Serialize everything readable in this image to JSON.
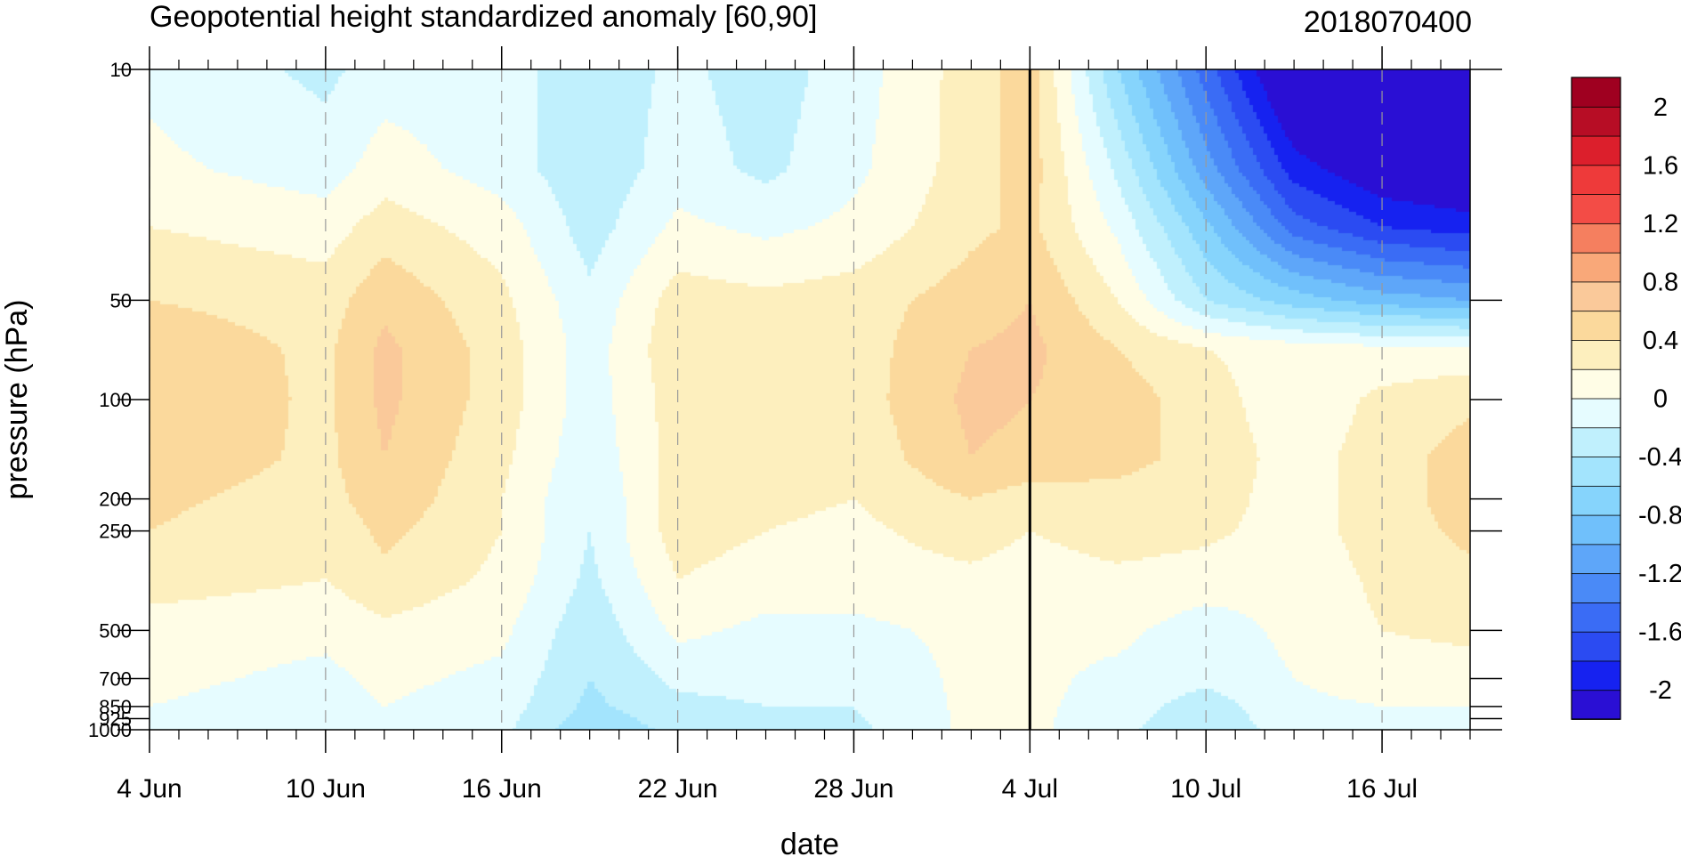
{
  "chart_data": {
    "type": "heatmap",
    "title": "Geopotential height standardized anomaly [60,90]",
    "timestamp": "2018070400",
    "xlabel": "date",
    "ylabel": "pressure (hPa)",
    "y_scale": "log",
    "y_reversed": true,
    "ylim": [
      1000,
      10
    ],
    "xlim": [
      "2018-06-04",
      "2018-07-19"
    ],
    "x_tick_labels": [
      "4 Jun",
      "10 Jun",
      "16 Jun",
      "22 Jun",
      "28 Jun",
      "4 Jul",
      "10 Jul",
      "16 Jul"
    ],
    "x_tick_dates": [
      "2018-06-04",
      "2018-06-10",
      "2018-06-16",
      "2018-06-22",
      "2018-06-28",
      "2018-07-04",
      "2018-07-10",
      "2018-07-16"
    ],
    "current_date_marker": "2018-07-04",
    "y_tick_labels": [
      "10",
      "50",
      "100",
      "200",
      "250",
      "500",
      "700",
      "850",
      "925",
      "1000"
    ],
    "y_tick_values": [
      10,
      50,
      100,
      200,
      250,
      500,
      700,
      850,
      925,
      1000
    ],
    "colorbar": {
      "labels": [
        "2",
        "1.6",
        "1.2",
        "0.8",
        "0.4",
        "0",
        "-0.4",
        "-0.8",
        "-1.2",
        "-1.6",
        "-2"
      ],
      "label_values": [
        2,
        1.6,
        1.2,
        0.8,
        0.4,
        0,
        -0.4,
        -0.8,
        -1.2,
        -1.6,
        -2
      ],
      "levels": [
        -2.2,
        -2.0,
        -1.8,
        -1.6,
        -1.4,
        -1.2,
        -1.0,
        -0.8,
        -0.6,
        -0.4,
        -0.2,
        0,
        0.2,
        0.4,
        0.6,
        0.8,
        1.0,
        1.2,
        1.4,
        1.6,
        1.8,
        2.0,
        2.2
      ],
      "colors": [
        "#2a0fd4",
        "#1622f0",
        "#2b4bf2",
        "#3a6cf5",
        "#4a8af7",
        "#5ea6f9",
        "#70c0fb",
        "#86d4fc",
        "#a3e4fd",
        "#c0f0fd",
        "#e6fcff",
        "#fffde6",
        "#fdefbe",
        "#fbd99c",
        "#fac99a",
        "#f9a879",
        "#f57f5f",
        "#f34c46",
        "#ee3a3a",
        "#dc1f2c",
        "#b70d25",
        "#9f0020"
      ]
    },
    "field": {
      "dates": [
        "2018-06-04",
        "2018-06-10",
        "2018-06-12",
        "2018-06-16",
        "2018-06-19",
        "2018-06-22",
        "2018-06-25",
        "2018-06-28",
        "2018-07-02",
        "2018-07-04",
        "2018-07-07",
        "2018-07-10",
        "2018-07-13",
        "2018-07-16",
        "2018-07-19"
      ],
      "pressure_levels": [
        10,
        20,
        30,
        50,
        70,
        100,
        150,
        200,
        250,
        350,
        500,
        700,
        850,
        1000
      ],
      "values": [
        [
          -0.05,
          -0.25,
          -0.1,
          -0.1,
          -0.35,
          -0.15,
          -0.3,
          -0.1,
          0.3,
          0.5,
          -0.6,
          -1.5,
          -2.4,
          -2.6,
          -2.7
        ],
        [
          0.05,
          -0.1,
          0.1,
          -0.1,
          -0.35,
          -0.1,
          -0.25,
          -0.05,
          0.3,
          0.5,
          -0.25,
          -1.1,
          -1.9,
          -2.2,
          -2.3
        ],
        [
          0.2,
          0.1,
          0.3,
          0.1,
          -0.3,
          0.05,
          -0.05,
          0.05,
          0.35,
          0.45,
          -0.05,
          -0.75,
          -1.5,
          -1.8,
          -1.9
        ],
        [
          0.4,
          0.3,
          0.55,
          0.25,
          -0.15,
          0.3,
          0.25,
          0.3,
          0.5,
          0.6,
          0.2,
          -0.4,
          -0.7,
          -0.9,
          -1.0
        ],
        [
          0.55,
          0.35,
          0.65,
          0.3,
          -0.1,
          0.35,
          0.3,
          0.3,
          0.6,
          0.65,
          0.4,
          0.2,
          0.1,
          0.05,
          0.05
        ],
        [
          0.6,
          0.35,
          0.65,
          0.3,
          -0.1,
          0.3,
          0.3,
          0.3,
          0.65,
          0.6,
          0.5,
          0.3,
          0.05,
          0.25,
          0.35
        ],
        [
          0.55,
          0.35,
          0.6,
          0.25,
          -0.15,
          0.3,
          0.3,
          0.25,
          0.6,
          0.55,
          0.45,
          0.35,
          0.1,
          0.3,
          0.5
        ],
        [
          0.45,
          0.3,
          0.55,
          0.2,
          -0.2,
          0.3,
          0.25,
          0.2,
          0.4,
          0.3,
          0.35,
          0.3,
          0.1,
          0.3,
          0.5
        ],
        [
          0.4,
          0.25,
          0.45,
          0.2,
          -0.2,
          0.3,
          0.2,
          0.15,
          0.3,
          0.2,
          0.3,
          0.25,
          0.1,
          0.3,
          0.45
        ],
        [
          0.3,
          0.2,
          0.35,
          0.15,
          -0.25,
          0.2,
          0.1,
          0.1,
          0.15,
          0.1,
          0.15,
          0.1,
          0.05,
          0.25,
          0.35
        ],
        [
          0.1,
          0.05,
          0.15,
          0.05,
          -0.35,
          0.05,
          -0.05,
          -0.05,
          0.05,
          0.05,
          0.05,
          -0.1,
          0.05,
          0.2,
          0.25
        ],
        [
          0.05,
          -0.05,
          0.05,
          -0.05,
          -0.4,
          -0.15,
          -0.15,
          -0.15,
          0.05,
          0.05,
          -0.05,
          -0.15,
          0.0,
          0.1,
          0.1
        ],
        [
          0.0,
          -0.1,
          0.0,
          -0.1,
          -0.45,
          -0.25,
          -0.2,
          -0.2,
          0.05,
          0.05,
          -0.1,
          -0.3,
          -0.05,
          0.0,
          0.0
        ],
        [
          -0.05,
          -0.15,
          -0.05,
          -0.15,
          -0.55,
          -0.35,
          -0.25,
          -0.25,
          0.05,
          0.05,
          -0.15,
          -0.35,
          -0.1,
          -0.05,
          -0.05
        ]
      ]
    }
  }
}
